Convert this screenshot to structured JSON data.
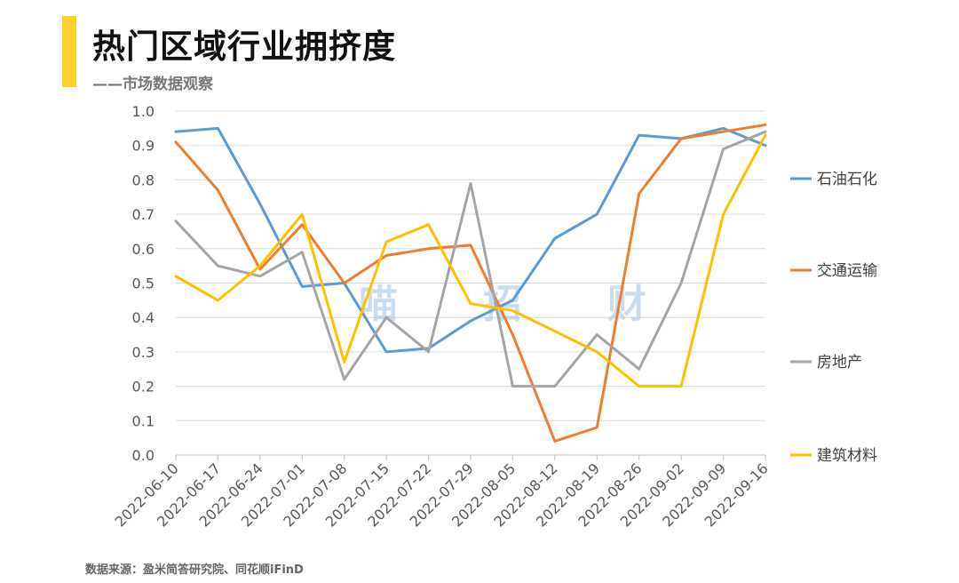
{
  "header": {
    "title": "热门区域行业拥挤度",
    "subtitle": "——市场数据观察",
    "accent_color": "#FFD02E"
  },
  "source": "数据来源：盈米简答研究院、同花顺iFinD",
  "watermark": [
    "喵",
    "招",
    "财"
  ],
  "chart_data": {
    "type": "line",
    "title": "热门区域行业拥挤度",
    "subtitle": "——市场数据观察",
    "xlabel": "",
    "ylabel": "",
    "x": [
      "2022-06-10",
      "2022-06-17",
      "2022-06-24",
      "2022-07-01",
      "2022-07-08",
      "2022-07-15",
      "2022-07-22",
      "2022-07-29",
      "2022-08-05",
      "2022-08-12",
      "2022-08-19",
      "2022-08-26",
      "2022-09-02",
      "2022-09-09",
      "2022-09-16"
    ],
    "y_ticks": [
      "0.0",
      "0.1",
      "0.2",
      "0.3",
      "0.4",
      "0.5",
      "0.6",
      "0.7",
      "0.8",
      "0.9",
      "1.0"
    ],
    "ylim": [
      0,
      1
    ],
    "grid": true,
    "legend_position": "right",
    "series": [
      {
        "name": "石油石化",
        "color": "#5B9BD5",
        "values": [
          0.94,
          0.95,
          0.73,
          0.49,
          0.5,
          0.3,
          0.31,
          0.39,
          0.45,
          0.63,
          0.7,
          0.93,
          0.92,
          0.95,
          0.9
        ]
      },
      {
        "name": "交通运输",
        "color": "#ED7D31",
        "values": [
          0.91,
          0.77,
          0.54,
          0.67,
          0.5,
          0.58,
          0.6,
          0.61,
          0.35,
          0.04,
          0.08,
          0.76,
          0.92,
          0.94,
          0.96
        ]
      },
      {
        "name": "房地产",
        "color": "#A5A5A5",
        "values": [
          0.68,
          0.55,
          0.52,
          0.59,
          0.22,
          0.4,
          0.3,
          0.79,
          0.2,
          0.2,
          0.35,
          0.25,
          0.5,
          0.89,
          0.94
        ]
      },
      {
        "name": "建筑材料",
        "color": "#FFC000",
        "values": [
          0.52,
          0.45,
          0.55,
          0.7,
          0.27,
          0.62,
          0.67,
          0.44,
          0.42,
          0.36,
          0.3,
          0.2,
          0.2,
          0.7,
          0.93
        ]
      }
    ]
  }
}
